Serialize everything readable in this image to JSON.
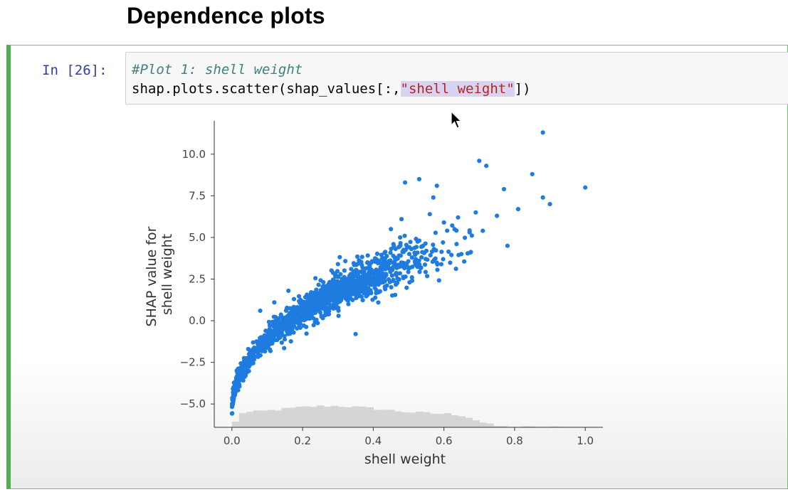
{
  "page": {
    "heading": "Dependence plots"
  },
  "cell": {
    "prompt": "In [26]:",
    "code_comment": "#Plot 1: shell weight",
    "code_prefix": "shap.plots.scatter(shap_values[:,",
    "code_string": "\"shell weight\"",
    "code_suffix": "])"
  },
  "icons": {
    "cursor": "mouse-pointer-icon"
  },
  "colors": {
    "cell_border": "#4caf50",
    "prompt": "#303f9f",
    "comment": "#408080",
    "string": "#ba2121",
    "selection": "#d7d4f0",
    "points": "#1e7be0",
    "histogram": "#d5d5d5"
  },
  "chart_data": {
    "type": "scatter",
    "xlabel": "shell weight",
    "ylabel": "SHAP value for\nshell weight",
    "xlim": [
      -0.05,
      1.05
    ],
    "ylim": [
      -6.4,
      12.0
    ],
    "xticks": [
      0.0,
      0.2,
      0.4,
      0.6,
      0.8,
      1.0
    ],
    "xtick_labels": [
      "0.0",
      "0.2",
      "0.4",
      "0.6",
      "0.8",
      "1.0"
    ],
    "yticks": [
      -5.0,
      -2.5,
      0.0,
      2.5,
      5.0,
      7.5,
      10.0
    ],
    "ytick_labels": [
      "−5.0",
      "−2.5",
      "0.0",
      "2.5",
      "5.0",
      "7.5",
      "10.0"
    ],
    "grid": false,
    "histogram": true,
    "outliers": [
      [
        0.88,
        11.3
      ],
      [
        0.7,
        9.6
      ],
      [
        0.72,
        9.3
      ],
      [
        0.85,
        8.8
      ],
      [
        0.49,
        8.3
      ],
      [
        0.53,
        8.5
      ],
      [
        1.0,
        8.0
      ],
      [
        0.77,
        7.9
      ],
      [
        0.58,
        8.1
      ],
      [
        0.88,
        7.4
      ],
      [
        0.9,
        7.0
      ],
      [
        0.81,
        6.7
      ],
      [
        0.69,
        6.5
      ],
      [
        0.75,
        6.3
      ],
      [
        0.78,
        4.5
      ],
      [
        0.71,
        5.4
      ],
      [
        0.64,
        6.2
      ],
      [
        0.6,
        5.9
      ],
      [
        0.63,
        5.5
      ],
      [
        0.56,
        6.4
      ],
      [
        0.48,
        6.1
      ],
      [
        0.45,
        5.5
      ],
      [
        0.3,
        3.4
      ],
      [
        0.16,
        1.8
      ],
      [
        0.12,
        1.1
      ],
      [
        0.35,
        -0.8
      ],
      [
        0.08,
        0.6
      ],
      [
        0.41,
        3.0
      ],
      [
        0.52,
        3.7
      ],
      [
        0.57,
        7.4
      ]
    ]
  }
}
